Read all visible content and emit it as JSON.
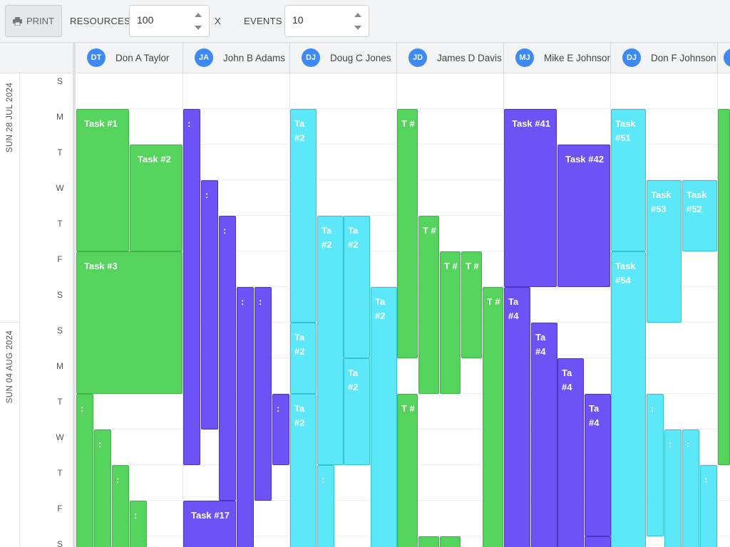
{
  "toolbar": {
    "print_label": "PRINT",
    "resources_label": "RESOURCES",
    "resources_value": "100",
    "times_label": "X",
    "events_label": "EVENTS",
    "events_value": "10"
  },
  "colors": {
    "green": "#55d35d",
    "purple": "#6d52f5",
    "cyan": "#5de8f9",
    "avatar": "#3d8af7"
  },
  "resources": [
    {
      "initials": "DT",
      "name": "Don A Taylor"
    },
    {
      "initials": "JA",
      "name": "John B Adams"
    },
    {
      "initials": "DJ",
      "name": "Doug C Jones"
    },
    {
      "initials": "JD",
      "name": "James D Davis"
    },
    {
      "initials": "MJ",
      "name": "Mike E Johnson"
    },
    {
      "initials": "DJ",
      "name": "Don F Johnson"
    },
    {
      "initials": "J",
      "name": ""
    }
  ],
  "weeks": [
    "SUN 28 JUL 2024",
    "SUN 04 AUG 2024"
  ],
  "days": [
    "S",
    "M",
    "T",
    "W",
    "T",
    "F",
    "S",
    "S",
    "M",
    "T",
    "W",
    "T",
    "F",
    "S"
  ],
  "events": [
    {
      "label": "Task #1",
      "color": "green"
    },
    {
      "label": "Task #2",
      "color": "green"
    },
    {
      "label": "Task #3",
      "color": "green"
    },
    {
      "label": ":",
      "color": "green"
    },
    {
      "label": ":",
      "color": "green"
    },
    {
      "label": ":",
      "color": "green"
    },
    {
      "label": ":",
      "color": "green"
    },
    {
      "label": ":",
      "color": "purple"
    },
    {
      "label": ":",
      "color": "purple"
    },
    {
      "label": ":",
      "color": "purple"
    },
    {
      "label": ":",
      "color": "purple"
    },
    {
      "label": ":",
      "color": "purple"
    },
    {
      "label": ":",
      "color": "purple"
    },
    {
      "label": "Task #17",
      "color": "purple"
    },
    {
      "label": "Ta #2",
      "color": "cyan"
    },
    {
      "label": "Ta #2",
      "color": "cyan"
    },
    {
      "label": "Ta #2",
      "color": "cyan"
    },
    {
      "label": "Ta #2",
      "color": "cyan"
    },
    {
      "label": "Ta #2",
      "color": "cyan"
    },
    {
      "label": "Ta #2",
      "color": "cyan"
    },
    {
      "label": "Ta #2",
      "color": "cyan"
    },
    {
      "label": ":",
      "color": "cyan"
    },
    {
      "label": "T #",
      "color": "green"
    },
    {
      "label": "T #",
      "color": "green"
    },
    {
      "label": "T #",
      "color": "green"
    },
    {
      "label": "T #",
      "color": "green"
    },
    {
      "label": "T #",
      "color": "green"
    },
    {
      "label": "T #",
      "color": "green"
    },
    {
      "label": "",
      "color": "green"
    },
    {
      "label": "",
      "color": "green"
    },
    {
      "label": "Task #41",
      "color": "purple"
    },
    {
      "label": "Task #42",
      "color": "purple"
    },
    {
      "label": "Ta #4",
      "color": "purple"
    },
    {
      "label": "Ta #4",
      "color": "purple"
    },
    {
      "label": "Ta #4",
      "color": "purple"
    },
    {
      "label": "Ta #4",
      "color": "purple"
    },
    {
      "label": "",
      "color": "purple"
    },
    {
      "label": "Task #51",
      "color": "cyan"
    },
    {
      "label": "Task #53",
      "color": "cyan"
    },
    {
      "label": "Task #52",
      "color": "cyan"
    },
    {
      "label": "Task #54",
      "color": "cyan"
    },
    {
      "label": ":",
      "color": "cyan"
    },
    {
      "label": ":",
      "color": "cyan"
    },
    {
      "label": ":",
      "color": "cyan"
    },
    {
      "label": ":",
      "color": "cyan"
    },
    {
      "label": "",
      "color": "green"
    }
  ]
}
